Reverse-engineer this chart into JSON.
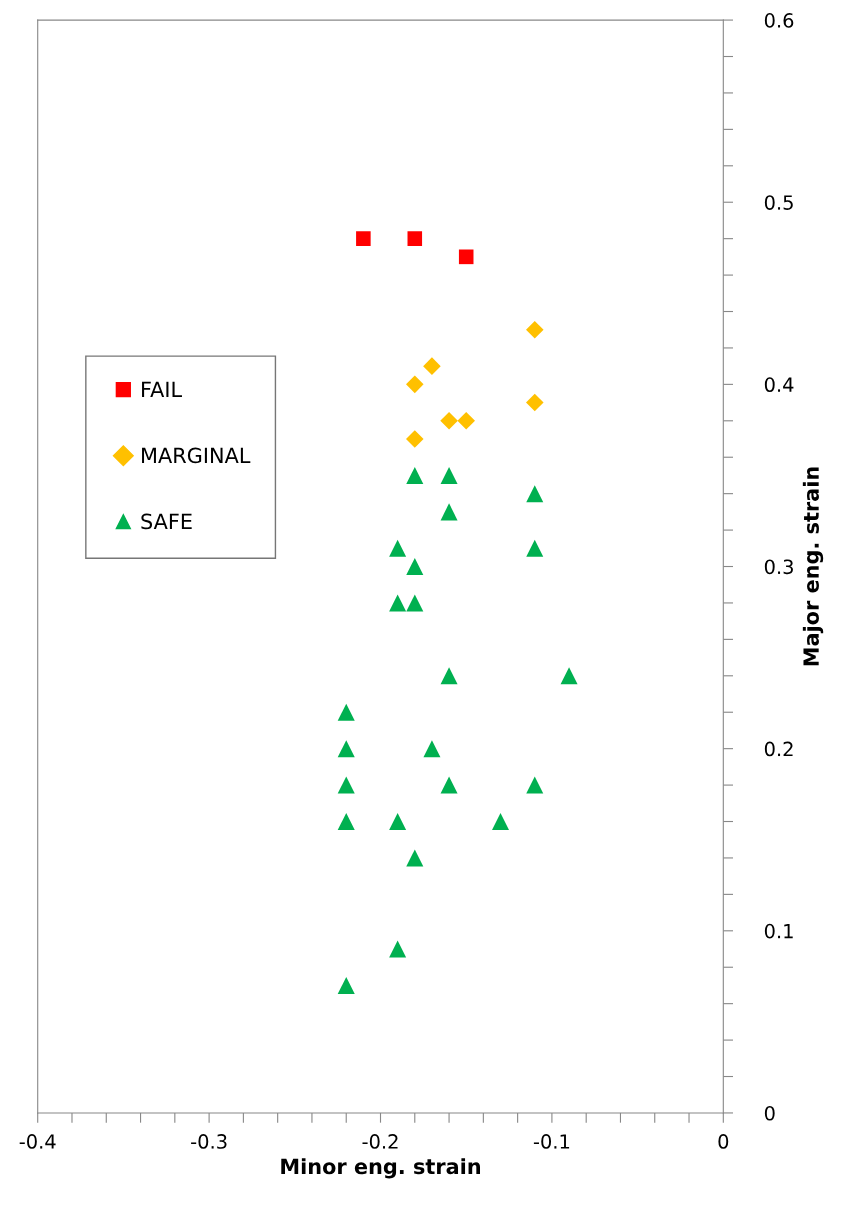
{
  "chart_data": {
    "type": "scatter",
    "xlabel": "Minor eng. strain",
    "ylabel": "Major eng. strain",
    "xlim": [
      -0.4,
      0
    ],
    "ylim": [
      0,
      0.6
    ],
    "xticks": [
      -0.4,
      {
        "value": -0.38,
        "label": null
      },
      {
        "value": -0.36,
        "label": null
      },
      {
        "value": -0.34,
        "label": null
      },
      {
        "value": -0.32,
        "label": null
      },
      -0.3,
      {
        "value": -0.28,
        "label": null
      },
      {
        "value": -0.26,
        "label": null
      },
      {
        "value": -0.24,
        "label": null
      },
      {
        "value": -0.22,
        "label": null
      },
      -0.2,
      {
        "value": -0.18,
        "label": null
      },
      {
        "value": -0.16,
        "label": null
      },
      {
        "value": -0.14,
        "label": null
      },
      {
        "value": -0.12,
        "label": null
      },
      -0.1,
      {
        "value": -0.08,
        "label": null
      },
      {
        "value": -0.06,
        "label": null
      },
      {
        "value": -0.04,
        "label": null
      },
      {
        "value": -0.02,
        "label": null
      },
      0
    ],
    "yticks": [
      0,
      {
        "value": 0.02,
        "label": null
      },
      {
        "value": 0.04,
        "label": null
      },
      {
        "value": 0.06,
        "label": null
      },
      {
        "value": 0.08,
        "label": null
      },
      0.1,
      {
        "value": 0.12,
        "label": null
      },
      {
        "value": 0.14,
        "label": null
      },
      {
        "value": 0.16,
        "label": null
      },
      {
        "value": 0.18,
        "label": null
      },
      0.2,
      {
        "value": 0.22,
        "label": null
      },
      {
        "value": 0.24,
        "label": null
      },
      {
        "value": 0.26,
        "label": null
      },
      {
        "value": 0.28,
        "label": null
      },
      0.3,
      {
        "value": 0.32,
        "label": null
      },
      {
        "value": 0.34,
        "label": null
      },
      {
        "value": 0.36,
        "label": null
      },
      {
        "value": 0.38,
        "label": null
      },
      0.4,
      {
        "value": 0.42,
        "label": null
      },
      {
        "value": 0.44,
        "label": null
      },
      {
        "value": 0.46,
        "label": null
      },
      {
        "value": 0.48,
        "label": null
      },
      0.5,
      {
        "value": 0.52,
        "label": null
      },
      {
        "value": 0.54,
        "label": null
      },
      {
        "value": 0.56,
        "label": null
      },
      {
        "value": 0.58,
        "label": null
      },
      0.6
    ],
    "grid": false,
    "legend": "left",
    "series": [
      {
        "name": "FAIL",
        "color": "#ff0000",
        "marker": "square",
        "x": [
          -0.21,
          -0.18,
          -0.15
        ],
        "values": [
          0.48,
          0.48,
          0.47
        ]
      },
      {
        "name": "MARGINAL",
        "color": "#ffc000",
        "marker": "diamond",
        "x": [
          -0.11,
          -0.17,
          -0.18,
          -0.11,
          -0.16,
          -0.15,
          -0.18
        ],
        "values": [
          0.43,
          0.41,
          0.4,
          0.39,
          0.38,
          0.38,
          0.37
        ]
      },
      {
        "name": "SAFE",
        "color": "#00b050",
        "marker": "triangle",
        "x": [
          -0.18,
          -0.16,
          -0.11,
          -0.16,
          -0.19,
          -0.11,
          -0.18,
          -0.19,
          -0.18,
          -0.16,
          -0.09,
          -0.22,
          -0.22,
          -0.17,
          -0.22,
          -0.16,
          -0.11,
          -0.22,
          -0.19,
          -0.13,
          -0.18,
          -0.19,
          -0.22
        ],
        "values": [
          0.35,
          0.35,
          0.34,
          0.33,
          0.31,
          0.31,
          0.3,
          0.28,
          0.28,
          0.24,
          0.24,
          0.22,
          0.2,
          0.2,
          0.18,
          0.18,
          0.18,
          0.16,
          0.16,
          0.16,
          0.14,
          0.09,
          0.07
        ]
      }
    ]
  }
}
